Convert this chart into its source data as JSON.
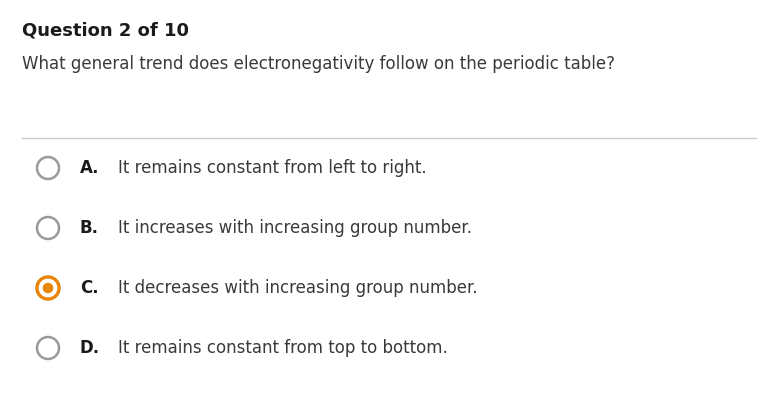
{
  "title": "Question 2 of 10",
  "question": "What general trend does electronegativity follow on the periodic table?",
  "options": [
    {
      "label": "A.",
      "text": "It remains constant from left to right.",
      "selected": false
    },
    {
      "label": "B.",
      "text": "It increases with increasing group number.",
      "selected": false
    },
    {
      "label": "C.",
      "text": "It decreases with increasing group number.",
      "selected": true
    },
    {
      "label": "D.",
      "text": "It remains constant from top to bottom.",
      "selected": false
    }
  ],
  "background_color": "#ffffff",
  "title_color": "#1a1a1a",
  "question_color": "#3a3a3a",
  "option_label_color": "#1a1a1a",
  "option_text_color": "#3a3a3a",
  "divider_color": "#cccccc",
  "radio_default_edge_color": "#999999",
  "radio_selected_color": "#e8860a",
  "title_fontsize": 13,
  "question_fontsize": 12,
  "option_fontsize": 12,
  "fig_width": 7.78,
  "fig_height": 4.0,
  "dpi": 100
}
